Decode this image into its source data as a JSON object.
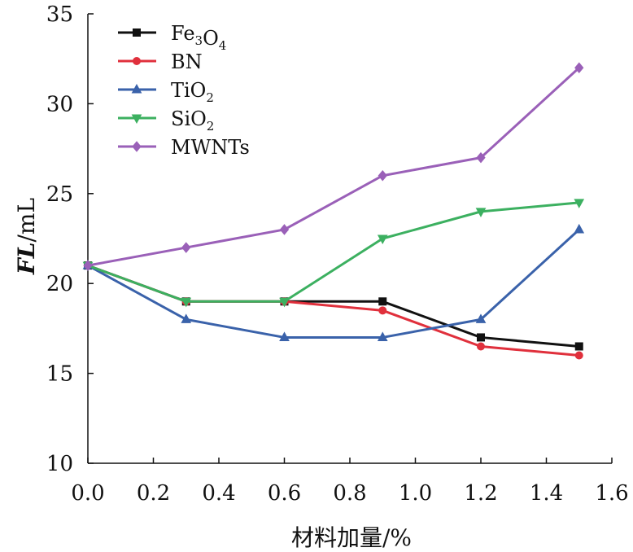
{
  "chart_data": {
    "type": "line",
    "title": "",
    "xlabel": "材料加量/%",
    "ylabel": {
      "italic": "FL",
      "rest": "/mL"
    },
    "xlim": [
      0.0,
      1.6
    ],
    "ylim": [
      10,
      35
    ],
    "xticks": [
      "0.0",
      "0.2",
      "0.4",
      "0.6",
      "0.8",
      "1.0",
      "1.2",
      "1.4",
      "1.6"
    ],
    "yticks": [
      "10",
      "15",
      "20",
      "25",
      "30",
      "35"
    ],
    "grid": false,
    "legend_position": "top-left",
    "x": [
      0.0,
      0.3,
      0.6,
      0.9,
      1.2,
      1.5
    ],
    "series": [
      {
        "name": "Fe3O4",
        "label_parts": [
          [
            "Fe",
            ""
          ],
          [
            "3",
            "sub"
          ],
          [
            "O",
            ""
          ],
          [
            "4",
            "sub"
          ]
        ],
        "color": "#111111",
        "marker": "square",
        "values": [
          21,
          19,
          19,
          19,
          17,
          16.5
        ]
      },
      {
        "name": "BN",
        "label_parts": [
          [
            "BN",
            ""
          ]
        ],
        "color": "#e0303c",
        "marker": "circle",
        "values": [
          21,
          19,
          19,
          18.5,
          16.5,
          16
        ]
      },
      {
        "name": "TiO2",
        "label_parts": [
          [
            "TiO",
            ""
          ],
          [
            "2",
            "sub"
          ]
        ],
        "color": "#3a62aa",
        "marker": "triangle-up",
        "values": [
          21,
          18,
          17,
          17,
          18,
          23
        ]
      },
      {
        "name": "SiO2",
        "label_parts": [
          [
            "SiO",
            ""
          ],
          [
            "2",
            "sub"
          ]
        ],
        "color": "#3cb060",
        "marker": "triangle-down",
        "values": [
          21,
          19,
          19,
          22.5,
          24,
          24.5
        ]
      },
      {
        "name": "MWNTs",
        "label_parts": [
          [
            "MWNTs",
            ""
          ]
        ],
        "color": "#9a60b8",
        "marker": "diamond",
        "values": [
          21,
          22,
          23,
          26,
          27,
          32
        ]
      }
    ]
  }
}
